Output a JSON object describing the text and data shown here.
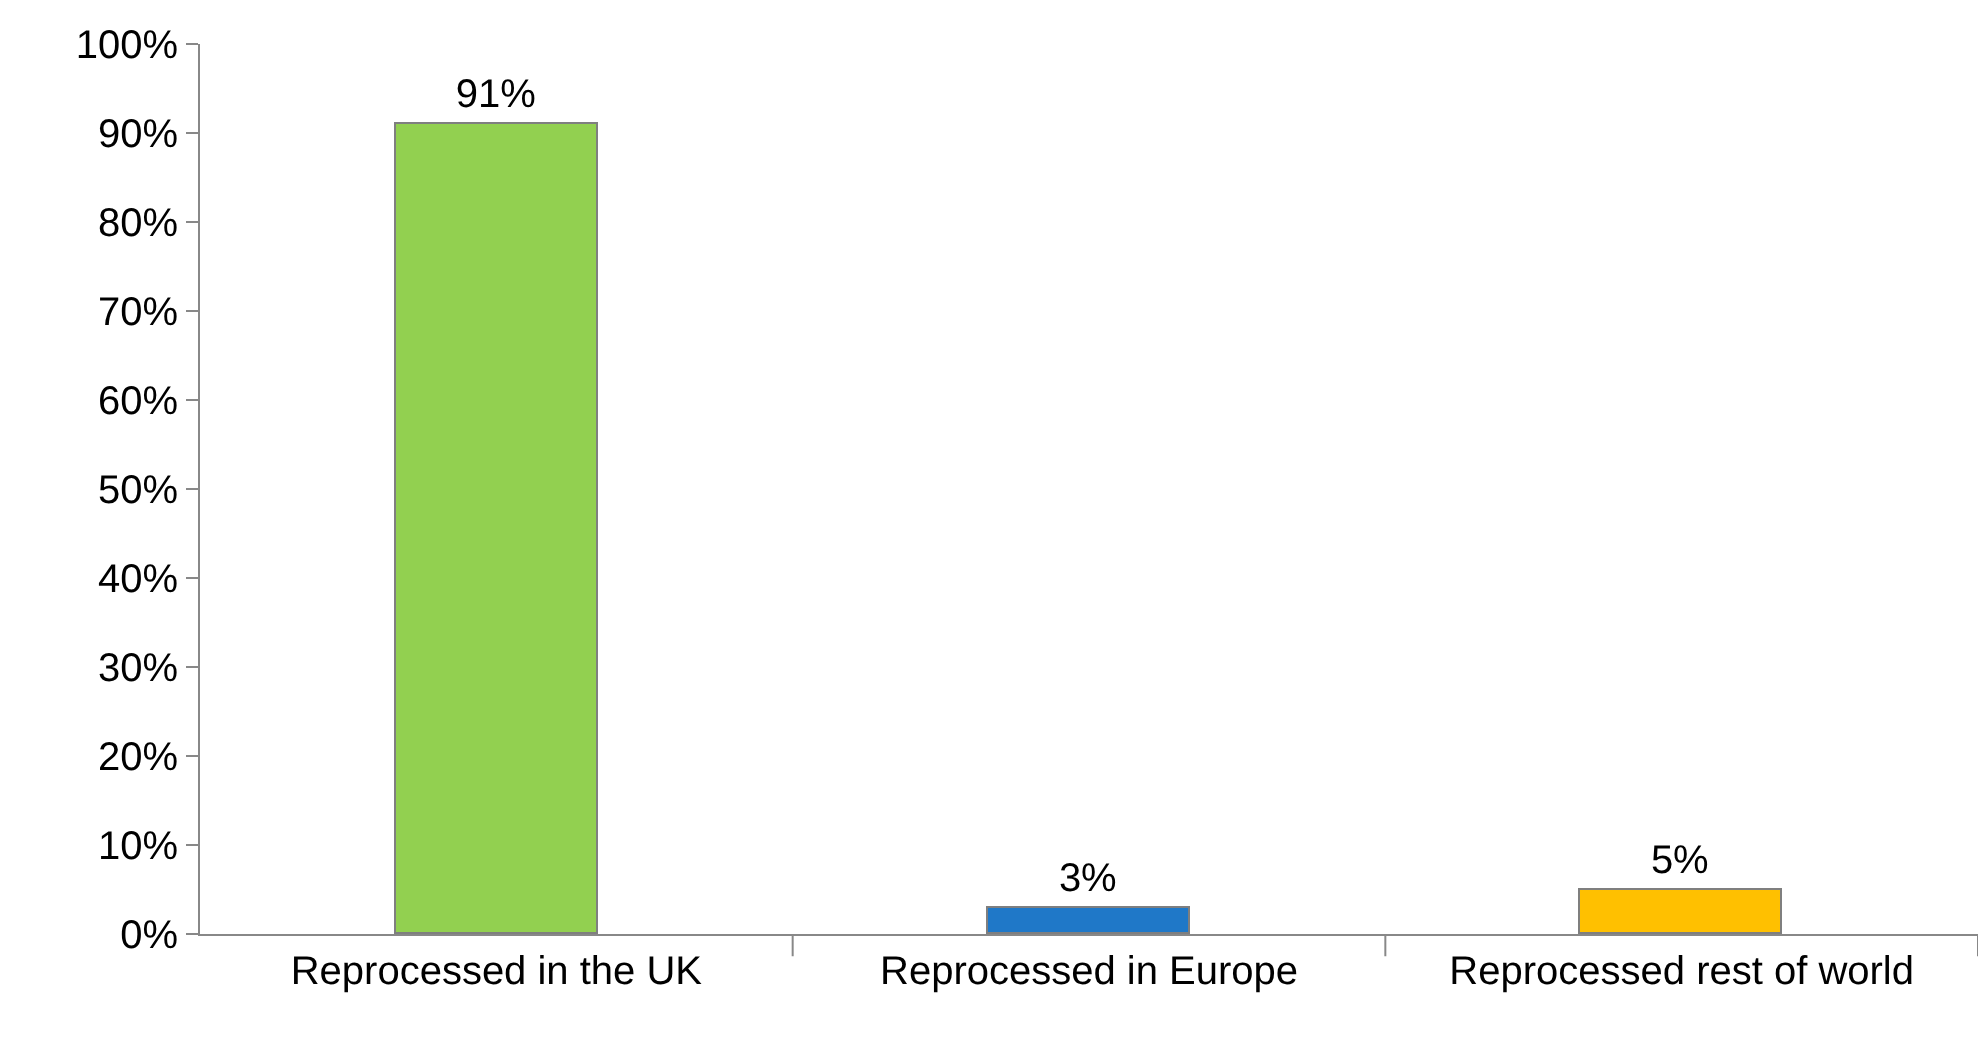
{
  "chart_data": {
    "type": "bar",
    "categories": [
      "Reprocessed in the UK",
      "Reprocessed in Europe",
      "Reprocessed rest of world"
    ],
    "values": [
      91,
      3,
      5
    ],
    "colors": [
      "#92d050",
      "#1f78c8",
      "#ffc000"
    ],
    "value_labels": [
      "91%",
      "3%",
      "5%"
    ],
    "ylim": [
      0,
      100
    ],
    "yticks": [
      {
        "value": 0,
        "label": "0%"
      },
      {
        "value": 10,
        "label": "10%"
      },
      {
        "value": 20,
        "label": "20%"
      },
      {
        "value": 30,
        "label": "30%"
      },
      {
        "value": 40,
        "label": "40%"
      },
      {
        "value": 50,
        "label": "50%"
      },
      {
        "value": 60,
        "label": "60%"
      },
      {
        "value": 70,
        "label": "70%"
      },
      {
        "value": 80,
        "label": "80%"
      },
      {
        "value": 90,
        "label": "90%"
      },
      {
        "value": 100,
        "label": "100%"
      }
    ],
    "grid": false,
    "legend": false
  }
}
